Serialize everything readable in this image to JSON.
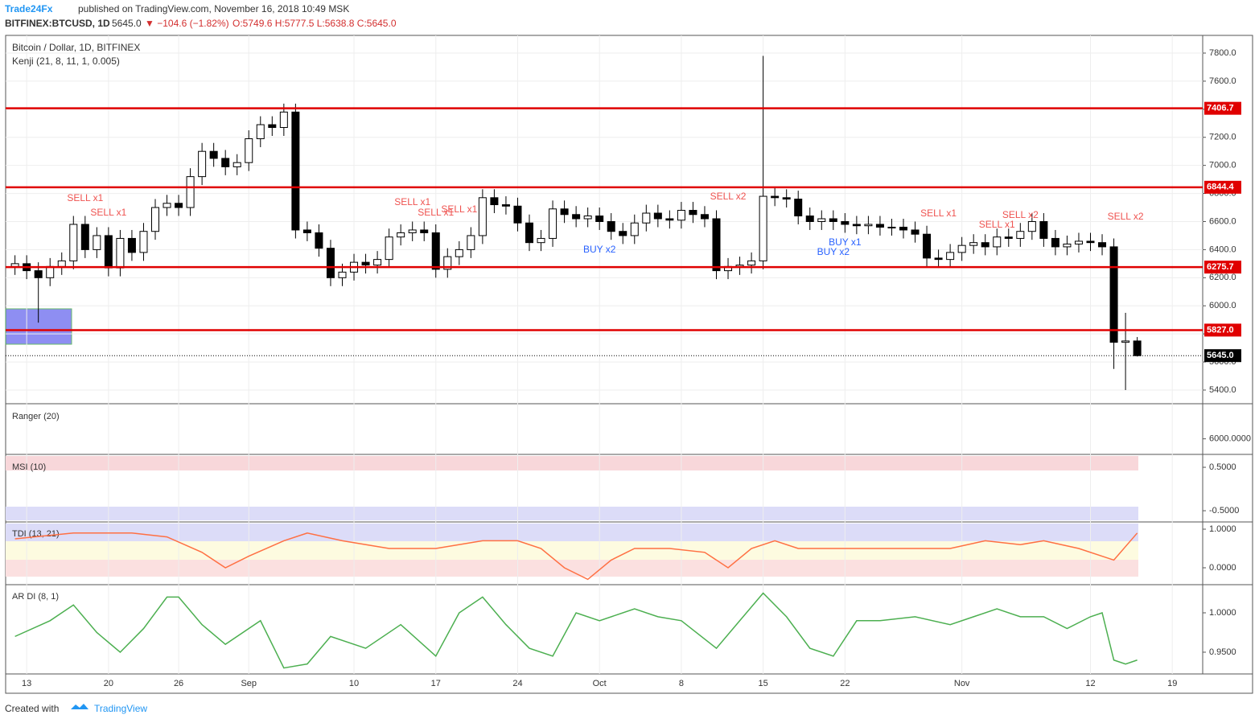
{
  "header": {
    "publisher": "Trade24Fx",
    "published": "published on TradingView.com, November 16, 2018 10:49 MSK",
    "symbol": "BITFINEX:BTCUSD, 1D",
    "last": "5645.0",
    "change": "▼ −104.6 (−1.82%)",
    "ohlc": "O:5749.6 H:5777.5 L:5638.8 C:5645.0"
  },
  "footer": {
    "created": "Created with",
    "brand": "TradingView"
  },
  "chart_data": [
    {
      "type": "candlestick",
      "title": "Bitcoin / Dollar, 1D, BITFINEX",
      "subtitle": "Kenji (21, 8, 11, 1, 0.005)",
      "open": [
        6280,
        6300,
        6250,
        6200,
        6280,
        6320,
        6580,
        6400,
        6500,
        6270,
        6480,
        6380,
        6530,
        6700,
        6730,
        6700,
        6920,
        7100,
        7050,
        6990,
        7020,
        7190,
        7290,
        7270,
        7380,
        6540,
        6520,
        6410,
        6200,
        6240,
        6310,
        6290,
        6330,
        6490,
        6520,
        6540,
        6520,
        6260,
        6350,
        6400,
        6500,
        6770,
        6720,
        6710,
        6590,
        6450,
        6480,
        6690,
        6650,
        6620,
        6640,
        6600,
        6530,
        6500,
        6590,
        6660,
        6620,
        6610,
        6680,
        6650,
        6620,
        6250,
        6280,
        6290,
        6320,
        6780,
        6770,
        6760,
        6640,
        6600,
        6620,
        6600,
        6580,
        6570,
        6580,
        6560,
        6560,
        6540,
        6510,
        6340,
        6330,
        6380,
        6430,
        6450,
        6420,
        6490,
        6480,
        6530,
        6600,
        6480,
        6420,
        6440,
        6460,
        6450,
        6420,
        5740,
        5749.6
      ],
      "high": [
        6360,
        6360,
        6310,
        6340,
        6380,
        6640,
        6640,
        6560,
        6560,
        6540,
        6540,
        6590,
        6760,
        6790,
        6790,
        6980,
        7160,
        7160,
        7110,
        7080,
        7250,
        7350,
        7350,
        7440,
        7440,
        6600,
        6580,
        6470,
        6300,
        6370,
        6370,
        6390,
        6550,
        6580,
        6600,
        6600,
        6580,
        6410,
        6460,
        6560,
        6830,
        6830,
        6780,
        6770,
        6650,
        6540,
        6750,
        6750,
        6710,
        6700,
        6700,
        6660,
        6590,
        6650,
        6720,
        6720,
        6680,
        6740,
        6740,
        6710,
        6680,
        6340,
        6350,
        6380,
        7780,
        6840,
        6830,
        6820,
        6700,
        6680,
        6680,
        6660,
        6640,
        6640,
        6640,
        6620,
        6620,
        6600,
        6570,
        6400,
        6440,
        6490,
        6510,
        6510,
        6550,
        6550,
        6590,
        6660,
        6660,
        6540,
        6500,
        6520,
        6520,
        6510,
        6480,
        5950,
        5777.5
      ],
      "low": [
        6220,
        6190,
        5880,
        6140,
        6220,
        6260,
        6340,
        6340,
        6210,
        6210,
        6320,
        6320,
        6470,
        6640,
        6640,
        6640,
        6860,
        6990,
        6930,
        6930,
        6960,
        7130,
        7210,
        7210,
        6480,
        6460,
        6350,
        6140,
        6140,
        6180,
        6230,
        6230,
        6270,
        6430,
        6460,
        6460,
        6200,
        6200,
        6290,
        6340,
        6440,
        6660,
        6650,
        6530,
        6390,
        6390,
        6420,
        6590,
        6560,
        6560,
        6540,
        6470,
        6440,
        6440,
        6530,
        6560,
        6550,
        6550,
        6590,
        6560,
        6190,
        6190,
        6220,
        6230,
        6260,
        6710,
        6700,
        6580,
        6540,
        6540,
        6540,
        6520,
        6510,
        6510,
        6500,
        6500,
        6480,
        6450,
        6280,
        6270,
        6270,
        6320,
        6370,
        6360,
        6360,
        6420,
        6420,
        6470,
        6420,
        6360,
        6360,
        6380,
        6390,
        6360,
        5550,
        5400,
        5638.8
      ],
      "close": [
        6300,
        6250,
        6200,
        6280,
        6320,
        6580,
        6400,
        6500,
        6270,
        6480,
        6380,
        6530,
        6700,
        6730,
        6700,
        6920,
        7100,
        7050,
        6990,
        7020,
        7190,
        7290,
        7270,
        7380,
        6540,
        6520,
        6410,
        6200,
        6240,
        6310,
        6290,
        6330,
        6490,
        6520,
        6540,
        6520,
        6260,
        6350,
        6400,
        6500,
        6770,
        6720,
        6710,
        6590,
        6450,
        6480,
        6690,
        6650,
        6620,
        6640,
        6600,
        6530,
        6500,
        6590,
        6660,
        6620,
        6610,
        6680,
        6650,
        6620,
        6250,
        6280,
        6290,
        6320,
        6780,
        6770,
        6760,
        6640,
        6600,
        6620,
        6600,
        6580,
        6570,
        6580,
        6560,
        6560,
        6540,
        6510,
        6340,
        6330,
        6380,
        6430,
        6450,
        6420,
        6490,
        6480,
        6530,
        6600,
        6480,
        6420,
        6440,
        6460,
        6450,
        6420,
        5740,
        5749.6,
        5645.0
      ],
      "xlim": [
        -0.8,
        101.6
      ],
      "xticks": [
        {
          "value": 1,
          "label": "13"
        },
        {
          "value": 8,
          "label": "20"
        },
        {
          "value": 14,
          "label": "26"
        },
        {
          "value": 20,
          "label": "Sep"
        },
        {
          "value": 29,
          "label": "10"
        },
        {
          "value": 36,
          "label": "17"
        },
        {
          "value": 43,
          "label": "24"
        },
        {
          "value": 50,
          "label": "Oct"
        },
        {
          "value": 57,
          "label": "8"
        },
        {
          "value": 64,
          "label": "15"
        },
        {
          "value": 71,
          "label": "22"
        },
        {
          "value": 81,
          "label": "Nov"
        },
        {
          "value": 92,
          "label": "12"
        },
        {
          "value": 99,
          "label": "19"
        }
      ],
      "ylim": [
        5314,
        7926
      ],
      "yticks": [
        {
          "value": 5400,
          "label": "5400.0"
        },
        {
          "value": 5600,
          "label": "5600.0"
        },
        {
          "value": 5800,
          "label": "5800.0"
        },
        {
          "value": 6000,
          "label": "6000.0"
        },
        {
          "value": 6200,
          "label": "6200.0"
        },
        {
          "value": 6400,
          "label": "6400.0"
        },
        {
          "value": 6600,
          "label": "6600.0"
        },
        {
          "value": 6800,
          "label": "6800.0"
        },
        {
          "value": 7000,
          "label": "7000.0"
        },
        {
          "value": 7200,
          "label": "7200.0"
        },
        {
          "value": 7400,
          "label": "7400.0"
        },
        {
          "value": 7600,
          "label": "7600.0"
        },
        {
          "value": 7800,
          "label": "7800.0"
        }
      ],
      "levels": [
        7406.7,
        6844.4,
        6275.7,
        5827.0
      ],
      "level_labels": [
        "7406.7",
        "6844.4",
        "6275.7",
        "5827.0"
      ],
      "level_color": "#e00000",
      "last_price": 5645.0,
      "last_price_label": "5645.0",
      "up_color": "#ffffff",
      "down_color": "#000000",
      "grid": true,
      "sell_signals": [
        {
          "text": "SELL x1",
          "x": 6,
          "y": 6763
        },
        {
          "text": "SELL x1",
          "x": 8,
          "y": 6660
        },
        {
          "text": "SELL x1",
          "x": 34,
          "y": 6735
        },
        {
          "text": "SELL x1",
          "x": 36,
          "y": 6660
        },
        {
          "text": "SELL x1",
          "x": 38,
          "y": 6683
        },
        {
          "text": "SELL x2",
          "x": 61,
          "y": 6775
        },
        {
          "text": "SELL x1",
          "x": 79,
          "y": 6655
        },
        {
          "text": "SELL x1",
          "x": 84,
          "y": 6574
        },
        {
          "text": "SELL x2",
          "x": 86,
          "y": 6643
        },
        {
          "text": "SELL x2",
          "x": 95,
          "y": 6632
        }
      ],
      "buy_signals": [
        {
          "text": "BUY x2",
          "x": 50,
          "y": 6397
        },
        {
          "text": "BUY x1",
          "x": 71,
          "y": 6448
        },
        {
          "text": "BUY x2",
          "x": 70,
          "y": 6380
        }
      ],
      "sell_color": "#ef5350",
      "buy_color": "#2962ff"
    },
    {
      "type": "pane",
      "title": "Ranger (20)",
      "ylim": [
        5500,
        7200
      ],
      "yticks": [
        {
          "value": 6000,
          "label": "6000.0000"
        }
      ]
    },
    {
      "type": "pane",
      "title": "MSI (10)",
      "ylim": [
        -0.74,
        0.76
      ],
      "yticks": [
        {
          "value": 0.5,
          "label": "0.5000"
        },
        {
          "value": -0.5,
          "label": "-0.5000"
        }
      ]
    },
    {
      "type": "line",
      "title": "TDI (13, 21)",
      "color": "#ff7043",
      "ylim": [
        -0.396,
        1.167
      ],
      "yticks": [
        {
          "value": 1,
          "label": "1.0000"
        },
        {
          "value": 0,
          "label": "0.0000"
        }
      ],
      "x": [
        0,
        5,
        10,
        13,
        16,
        18,
        20,
        23,
        25,
        28,
        32,
        36,
        40,
        43,
        45,
        47,
        49,
        51,
        53,
        56,
        59,
        61,
        63,
        65,
        67,
        72,
        80,
        83,
        86,
        88,
        91,
        94,
        96
      ],
      "values": [
        0.75,
        0.9,
        0.9,
        0.8,
        0.4,
        0.0,
        0.3,
        0.7,
        0.9,
        0.7,
        0.5,
        0.5,
        0.7,
        0.7,
        0.5,
        0.0,
        -0.3,
        0.2,
        0.5,
        0.5,
        0.4,
        0,
        0.5,
        0.7,
        0.5,
        0.5,
        0.5,
        0.7,
        0.6,
        0.7,
        0.5,
        0.2,
        0.9
      ]
    },
    {
      "type": "line",
      "title": "AR DI (8, 1)",
      "color": "#4caf50",
      "ylim": [
        0.9224,
        1.0347
      ],
      "yticks": [
        {
          "value": 1,
          "label": "1.0000"
        },
        {
          "value": 0.95,
          "label": "0.9500"
        }
      ],
      "x": [
        0,
        3,
        5,
        7,
        9,
        11,
        13,
        14,
        16,
        18,
        21,
        23,
        25,
        27,
        30,
        33,
        36,
        38,
        40,
        42,
        44,
        46,
        48,
        50,
        53,
        55,
        57,
        60,
        62,
        64,
        66,
        68,
        70,
        72,
        74,
        77,
        80,
        82,
        84,
        86,
        88,
        90,
        92,
        93,
        94,
        95,
        96
      ],
      "values": [
        0.97,
        0.99,
        1.01,
        0.975,
        0.95,
        0.98,
        1.02,
        1.02,
        0.985,
        0.96,
        0.99,
        0.93,
        0.935,
        0.97,
        0.955,
        0.985,
        0.945,
        1.0,
        1.02,
        0.985,
        0.955,
        0.945,
        1.0,
        0.99,
        1.005,
        0.995,
        0.99,
        0.955,
        0.99,
        1.025,
        0.995,
        0.955,
        0.945,
        0.99,
        0.99,
        0.995,
        0.985,
        0.995,
        1.005,
        0.995,
        0.995,
        0.98,
        0.995,
        1.0,
        0.94,
        0.935,
        0.94
      ]
    }
  ]
}
